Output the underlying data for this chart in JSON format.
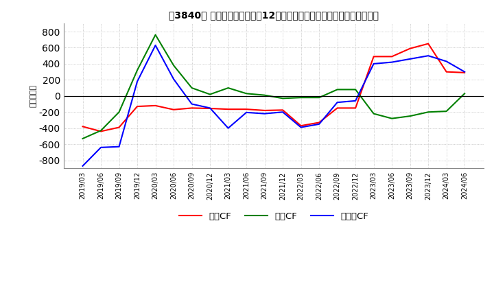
{
  "title": "［3840］ キャッシュフローの12か月移動合計の対前年同期増減額の推移",
  "ylabel": "（百万円）",
  "ylim": [
    -900,
    900
  ],
  "yticks": [
    -800,
    -600,
    -400,
    -200,
    0,
    200,
    400,
    600,
    800
  ],
  "dates": [
    "2019/03",
    "2019/06",
    "2019/09",
    "2019/12",
    "2020/03",
    "2020/06",
    "2020/09",
    "2020/12",
    "2021/03",
    "2021/06",
    "2021/09",
    "2021/12",
    "2022/03",
    "2022/06",
    "2022/09",
    "2022/12",
    "2023/03",
    "2023/06",
    "2023/09",
    "2023/12",
    "2024/03",
    "2024/06"
  ],
  "eigyo_cf": [
    -380,
    -440,
    -390,
    -130,
    -120,
    -170,
    -150,
    -155,
    -165,
    -165,
    -180,
    -175,
    -370,
    -330,
    -150,
    -150,
    490,
    490,
    590,
    650,
    300,
    290
  ],
  "toshi_cf": [
    -530,
    -430,
    -200,
    320,
    760,
    380,
    100,
    20,
    100,
    30,
    10,
    -30,
    -20,
    -20,
    80,
    80,
    -220,
    -280,
    -250,
    -200,
    -190,
    30
  ],
  "free_cf": [
    -870,
    -640,
    -630,
    180,
    630,
    210,
    -100,
    -150,
    -400,
    -205,
    -220,
    -200,
    -390,
    -350,
    -80,
    -60,
    400,
    420,
    460,
    500,
    430,
    300
  ],
  "eigyo_color": "#ff0000",
  "toshi_color": "#008000",
  "free_color": "#0000ff",
  "bg_color": "#ffffff",
  "grid_color": "#aaaaaa",
  "legend_labels": [
    "営業CF",
    "投資CF",
    "フリーCF"
  ]
}
